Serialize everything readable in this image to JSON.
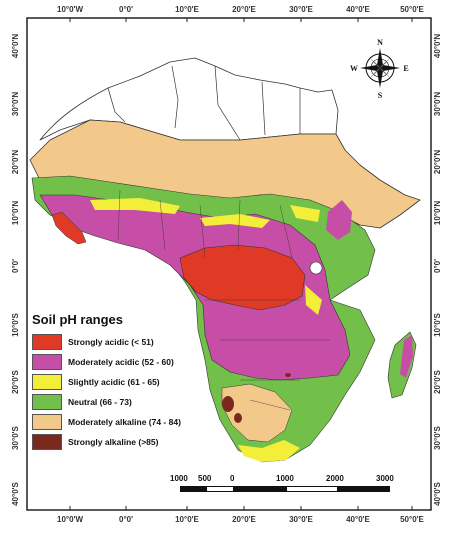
{
  "axes": {
    "top_ticks": [
      "10°0'W",
      "0°0'",
      "10°0'E",
      "20°0'E",
      "30°0'E",
      "40°0'E",
      "50°0'E"
    ],
    "bottom_ticks": [
      "10°0'W",
      "0°0'",
      "10°0'E",
      "20°0'E",
      "30°0'E",
      "40°0'E",
      "50°0'E"
    ],
    "left_ticks": [
      "40°0'N",
      "30°0'N",
      "20°0'N",
      "10°0'N",
      "0°0'",
      "10°0'S",
      "20°0'S",
      "30°0'S",
      "40°0'S"
    ],
    "right_ticks": [
      "40°0'N",
      "30°0'N",
      "20°0'N",
      "10°0'N",
      "0°0'",
      "10°0'S",
      "20°0'S",
      "30°0'S",
      "40°0'S"
    ]
  },
  "legend": {
    "title": "Soil pH ranges",
    "items": [
      {
        "label": "Strongly acidic (< 51)",
        "color": "#e03a26"
      },
      {
        "label": "Moderately acidic (52 - 60)",
        "color": "#c64ea6"
      },
      {
        "label": "Slightly acidic (61 - 65)",
        "color": "#f3ee3a"
      },
      {
        "label": "Neutral (66 - 73)",
        "color": "#72c04a"
      },
      {
        "label": "Moderately alkaline (74 - 84)",
        "color": "#f2c98a"
      },
      {
        "label": "Strongly alkaline (>85)",
        "color": "#7a2a1c"
      }
    ]
  },
  "scale_bar": {
    "ticks": [
      "1000",
      "500",
      "0",
      "1000",
      "2000",
      "3000"
    ]
  },
  "compass": {
    "n": "N",
    "s": "S",
    "e": "E",
    "w": "W"
  },
  "colors": {
    "strongly_acidic": "#e03a26",
    "moderately_acidic": "#c64ea6",
    "slightly_acidic": "#f3ee3a",
    "neutral": "#72c04a",
    "moderately_alkaline": "#f2c98a",
    "strongly_alkaline": "#7a2a1c",
    "no_data": "#ffffff",
    "ocean": "#ffffff"
  }
}
